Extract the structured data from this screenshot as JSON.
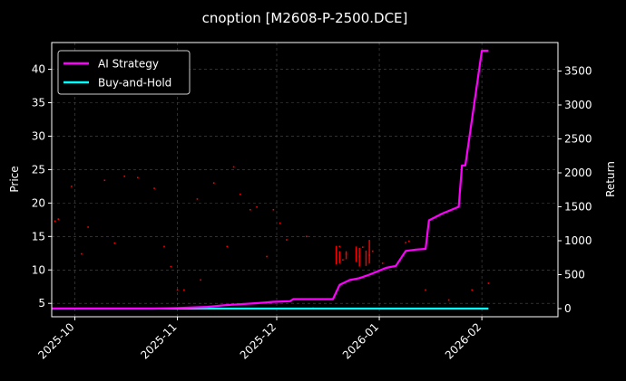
{
  "chart_data": {
    "type": "line",
    "title": "cnoption [M2608-P-2500.DCE]",
    "ylabel": "Price",
    "y2label": "Return",
    "x_ticks": [
      "2025-10",
      "2025-11",
      "2025-12",
      "2026-01",
      "2026-02"
    ],
    "xlim": [
      "2025-09-24",
      "2026-02-24"
    ],
    "ylim": [
      3,
      44
    ],
    "y_ticks": [
      5,
      10,
      15,
      20,
      25,
      30,
      35,
      40
    ],
    "y2lim": [
      -120,
      3920
    ],
    "y2_ticks": [
      0,
      500,
      1000,
      1500,
      2000,
      2500,
      3000,
      3500
    ],
    "grid": true,
    "legend": {
      "position": "top-left",
      "entries": [
        "AI Strategy",
        "Buy-and-Hold"
      ]
    },
    "colors": {
      "ai": "#ff00ff",
      "bh": "#00ffff",
      "price": "#ff0000",
      "background": "#000000",
      "grid": "#4d4d4d"
    },
    "series": [
      {
        "name": "AI Strategy",
        "axis": "right",
        "points": [
          [
            "2025-09-24",
            0
          ],
          [
            "2025-10-25",
            0
          ],
          [
            "2025-11-01",
            10
          ],
          [
            "2025-11-10",
            25
          ],
          [
            "2025-11-15",
            50
          ],
          [
            "2025-11-25",
            80
          ],
          [
            "2025-11-30",
            100
          ],
          [
            "2025-12-05",
            110
          ],
          [
            "2025-12-06",
            140
          ],
          [
            "2025-12-10",
            140
          ],
          [
            "2025-12-15",
            140
          ],
          [
            "2025-12-18",
            140
          ],
          [
            "2025-12-20",
            350
          ],
          [
            "2025-12-23",
            420
          ],
          [
            "2025-12-26",
            450
          ],
          [
            "2025-12-29",
            500
          ],
          [
            "2026-01-01",
            560
          ],
          [
            "2026-01-03",
            600
          ],
          [
            "2026-01-06",
            630
          ],
          [
            "2026-01-09",
            850
          ],
          [
            "2026-01-12",
            870
          ],
          [
            "2026-01-15",
            880
          ],
          [
            "2026-01-16",
            1300
          ],
          [
            "2026-01-20",
            1400
          ],
          [
            "2026-01-25",
            1500
          ],
          [
            "2026-01-26",
            2110
          ],
          [
            "2026-01-27",
            2110
          ],
          [
            "2026-02-01",
            3800
          ],
          [
            "2026-02-03",
            3800
          ]
        ]
      },
      {
        "name": "Buy-and-Hold",
        "axis": "right",
        "points": [
          [
            "2025-09-24",
            0
          ],
          [
            "2026-02-03",
            0
          ]
        ]
      }
    ],
    "price_scatter": [
      [
        "2025-09-25",
        17.3
      ],
      [
        "2025-09-26",
        17.6
      ],
      [
        "2025-09-30",
        22.5
      ],
      [
        "2025-10-03",
        12.4
      ],
      [
        "2025-10-05",
        16.4
      ],
      [
        "2025-10-10",
        23.4
      ],
      [
        "2025-10-13",
        14.0
      ],
      [
        "2025-10-16",
        24.0
      ],
      [
        "2025-10-20",
        23.8
      ],
      [
        "2025-10-25",
        22.2
      ],
      [
        "2025-10-28",
        13.5
      ],
      [
        "2025-10-30",
        10.5
      ],
      [
        "2025-11-01",
        7.0
      ],
      [
        "2025-11-03",
        7.0
      ],
      [
        "2025-11-07",
        20.6
      ],
      [
        "2025-11-08",
        8.5
      ],
      [
        "2025-11-12",
        23.0
      ],
      [
        "2025-11-16",
        13.5
      ],
      [
        "2025-11-18",
        25.4
      ],
      [
        "2025-11-20",
        21.3
      ],
      [
        "2025-11-23",
        19.0
      ],
      [
        "2025-11-25",
        19.4
      ],
      [
        "2025-11-28",
        12.0
      ],
      [
        "2025-11-30",
        19.0
      ],
      [
        "2025-12-02",
        17.0
      ],
      [
        "2025-12-04",
        14.5
      ],
      [
        "2025-12-10",
        15.0
      ],
      [
        "2025-12-12",
        4.3
      ],
      [
        "2025-12-20",
        13.5
      ],
      [
        "2025-12-21",
        11.5
      ],
      [
        "2025-12-22",
        12.4
      ],
      [
        "2025-12-26",
        12.0
      ],
      [
        "2025-12-27",
        13.4
      ],
      [
        "2025-12-29",
        12.2
      ],
      [
        "2025-12-30",
        12.8
      ],
      [
        "2026-01-02",
        11.0
      ],
      [
        "2026-01-09",
        14.1
      ],
      [
        "2026-01-10",
        14.3
      ],
      [
        "2026-01-15",
        7.0
      ],
      [
        "2026-01-22",
        5.5
      ],
      [
        "2026-01-29",
        7.0
      ],
      [
        "2026-02-03",
        8.0
      ]
    ],
    "price_ranges": [
      [
        "2025-12-19",
        10.8,
        13.6
      ],
      [
        "2025-12-20",
        11.0,
        12.8
      ],
      [
        "2025-12-22",
        11.6,
        12.8
      ],
      [
        "2025-12-25",
        11.2,
        13.5
      ],
      [
        "2025-12-26",
        10.5,
        13.3
      ],
      [
        "2025-12-28",
        10.6,
        12.9
      ],
      [
        "2025-12-29",
        11.0,
        14.5
      ]
    ]
  }
}
